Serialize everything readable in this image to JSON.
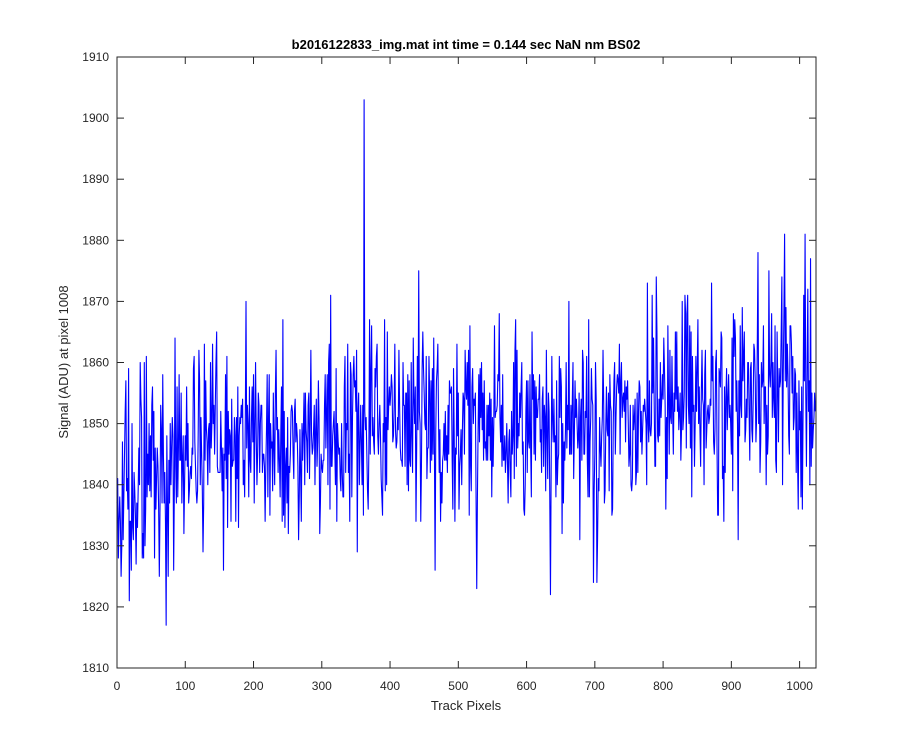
{
  "chart_data": {
    "type": "line",
    "title": "b2016122833_img.mat int time = 0.144 sec  NaN nm BS02",
    "xlabel": "Track Pixels",
    "ylabel": "Signal (ADU) at pixel 1008",
    "xlim": [
      0,
      1024
    ],
    "ylim": [
      1810,
      1910
    ],
    "xticks": [
      0,
      100,
      200,
      300,
      400,
      500,
      600,
      700,
      800,
      900,
      1000
    ],
    "yticks": [
      1810,
      1820,
      1830,
      1840,
      1850,
      1860,
      1870,
      1880,
      1890,
      1900,
      1910
    ],
    "grid": false,
    "series": [
      {
        "name": "signal",
        "color": "#0000ff",
        "n_points": 1024,
        "noise_amplitude": 8,
        "trend": [
          {
            "x": 0,
            "y": 1840
          },
          {
            "x": 100,
            "y": 1845
          },
          {
            "x": 200,
            "y": 1848
          },
          {
            "x": 300,
            "y": 1849
          },
          {
            "x": 400,
            "y": 1850
          },
          {
            "x": 500,
            "y": 1849
          },
          {
            "x": 600,
            "y": 1849
          },
          {
            "x": 700,
            "y": 1850
          },
          {
            "x": 800,
            "y": 1853
          },
          {
            "x": 900,
            "y": 1855
          },
          {
            "x": 1024,
            "y": 1857
          }
        ],
        "notable_points": [
          {
            "x": 3,
            "y": 1834
          },
          {
            "x": 12,
            "y": 1852
          },
          {
            "x": 18,
            "y": 1821
          },
          {
            "x": 55,
            "y": 1828
          },
          {
            "x": 72,
            "y": 1817
          },
          {
            "x": 85,
            "y": 1864
          },
          {
            "x": 156,
            "y": 1826
          },
          {
            "x": 243,
            "y": 1867
          },
          {
            "x": 352,
            "y": 1829
          },
          {
            "x": 362,
            "y": 1903
          },
          {
            "x": 367,
            "y": 1839
          },
          {
            "x": 442,
            "y": 1875
          },
          {
            "x": 466,
            "y": 1826
          },
          {
            "x": 527,
            "y": 1823
          },
          {
            "x": 635,
            "y": 1822
          },
          {
            "x": 698,
            "y": 1824
          },
          {
            "x": 703,
            "y": 1824
          },
          {
            "x": 790,
            "y": 1874
          },
          {
            "x": 910,
            "y": 1831
          },
          {
            "x": 939,
            "y": 1878
          },
          {
            "x": 978,
            "y": 1881
          },
          {
            "x": 1008,
            "y": 1881
          },
          {
            "x": 1015,
            "y": 1840
          }
        ]
      }
    ]
  }
}
